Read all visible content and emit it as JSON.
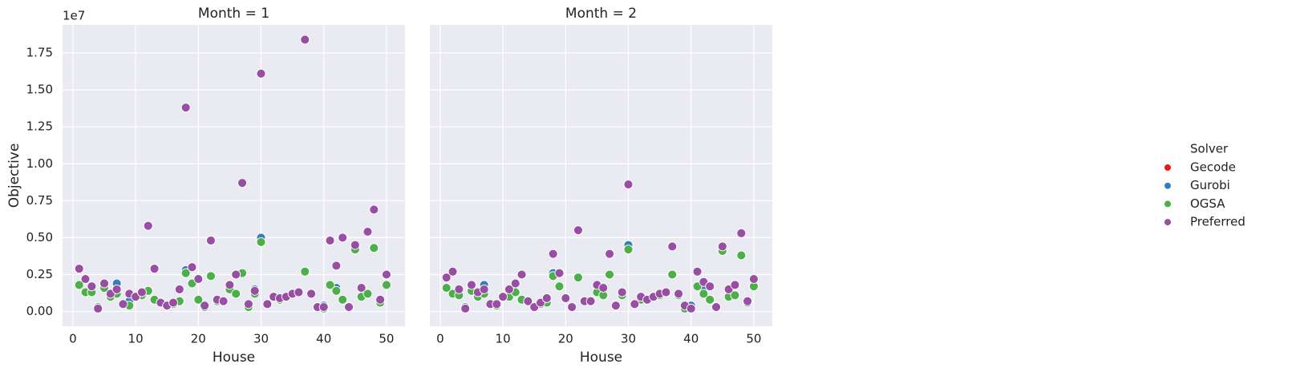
{
  "chart_data": [
    {
      "type": "scatter",
      "title": "Month = 1",
      "xlabel": "House",
      "ylabel": "Objective",
      "y_offset_label": "1e7",
      "xlim": [
        -1.65,
        52.95
      ],
      "ylim": [
        -0.1,
        1.94
      ],
      "xticks": [
        0,
        10,
        20,
        30,
        40,
        50
      ],
      "yticks": [
        {
          "value": 0,
          "label": "0.00"
        },
        {
          "value": 0.25,
          "label": "0.25"
        },
        {
          "value": 0.5,
          "label": "0.50"
        },
        {
          "value": 0.75,
          "label": "0.75"
        },
        {
          "value": 1,
          "label": "1.00"
        },
        {
          "value": 1.25,
          "label": "1.25"
        },
        {
          "value": 1.5,
          "label": "1.50"
        },
        {
          "value": 1.75,
          "label": "1.75"
        }
      ],
      "grid": true,
      "legend_title": "Solver",
      "legend_position": "right",
      "series": [
        {
          "name": "Gecode",
          "color": "#e41a1c",
          "x": [],
          "values": []
        },
        {
          "name": "Gurobi",
          "color": "#377eb8",
          "x": [
            7,
            9,
            18,
            29,
            30,
            40,
            42
          ],
          "values": [
            0.19,
            0.07,
            0.28,
            0.15,
            0.5,
            0.04,
            0.16
          ]
        },
        {
          "name": "OGSA",
          "color": "#4daf4a",
          "x": [
            1,
            2,
            3,
            4,
            5,
            6,
            7,
            8,
            9,
            10,
            11,
            12,
            13,
            14,
            15,
            16,
            17,
            18,
            19,
            20,
            21,
            22,
            23,
            24,
            25,
            26,
            27,
            28,
            29,
            30,
            31,
            32,
            33,
            34,
            35,
            36,
            37,
            38,
            39,
            40,
            41,
            42,
            43,
            44,
            45,
            46,
            47,
            48,
            49,
            50
          ],
          "values": [
            0.18,
            0.13,
            0.13,
            0.03,
            0.16,
            0.1,
            0.12,
            0.05,
            0.04,
            0.1,
            0.11,
            0.14,
            0.08,
            0.06,
            0.04,
            0.05,
            0.07,
            0.26,
            0.19,
            0.08,
            0.03,
            0.24,
            0.07,
            0.07,
            0.15,
            0.12,
            0.26,
            0.03,
            0.12,
            0.47,
            0.05,
            0.1,
            0.08,
            0.1,
            0.12,
            0.13,
            0.27,
            0.12,
            0.03,
            0.02,
            0.18,
            0.14,
            0.08,
            0.03,
            0.42,
            0.1,
            0.12,
            0.43,
            0.06,
            0.18
          ]
        },
        {
          "name": "Preferred",
          "color": "#984ea3",
          "x": [
            1,
            2,
            3,
            4,
            5,
            6,
            7,
            8,
            9,
            10,
            11,
            12,
            13,
            14,
            15,
            16,
            17,
            18,
            19,
            20,
            21,
            22,
            23,
            24,
            25,
            26,
            27,
            28,
            29,
            30,
            31,
            32,
            33,
            34,
            35,
            36,
            37,
            38,
            39,
            40,
            41,
            42,
            43,
            44,
            45,
            46,
            47,
            48,
            49,
            50
          ],
          "values": [
            0.29,
            0.22,
            0.17,
            0.02,
            0.19,
            0.12,
            0.15,
            0.05,
            0.12,
            0.1,
            0.13,
            0.58,
            0.29,
            0.06,
            0.04,
            0.06,
            0.15,
            1.38,
            0.3,
            0.22,
            0.04,
            0.48,
            0.08,
            0.07,
            0.18,
            0.25,
            0.87,
            0.05,
            0.14,
            1.61,
            0.05,
            0.1,
            0.09,
            0.1,
            0.12,
            0.13,
            1.84,
            0.12,
            0.03,
            0.03,
            0.48,
            0.31,
            0.5,
            0.03,
            0.45,
            0.16,
            0.54,
            0.69,
            0.08,
            0.25
          ]
        }
      ]
    },
    {
      "type": "scatter",
      "title": "Month = 2",
      "xlabel": "House",
      "xlim": [
        -1.65,
        52.95
      ],
      "ylim": [
        -0.1,
        1.94
      ],
      "xticks": [
        0,
        10,
        20,
        30,
        40,
        50
      ],
      "yticks": [
        0,
        0.25,
        0.5,
        0.75,
        1,
        1.25,
        1.5,
        1.75
      ],
      "grid": true,
      "series": [
        {
          "name": "Gecode",
          "color": "#e41a1c",
          "x": [],
          "values": []
        },
        {
          "name": "Gurobi",
          "color": "#377eb8",
          "x": [
            7,
            18,
            30,
            40,
            42
          ],
          "values": [
            0.18,
            0.26,
            0.45,
            0.04,
            0.15
          ]
        },
        {
          "name": "OGSA",
          "color": "#4daf4a",
          "x": [
            1,
            2,
            3,
            4,
            5,
            6,
            7,
            8,
            9,
            10,
            11,
            12,
            13,
            14,
            15,
            16,
            17,
            18,
            19,
            20,
            21,
            22,
            23,
            24,
            25,
            26,
            27,
            28,
            29,
            30,
            31,
            32,
            33,
            34,
            35,
            36,
            37,
            38,
            39,
            40,
            41,
            42,
            43,
            44,
            45,
            46,
            47,
            48,
            49,
            50
          ],
          "values": [
            0.16,
            0.12,
            0.11,
            0.03,
            0.14,
            0.1,
            0.12,
            0.05,
            0.04,
            0.1,
            0.1,
            0.13,
            0.08,
            0.07,
            0.03,
            0.05,
            0.06,
            0.24,
            0.17,
            0.09,
            0.03,
            0.23,
            0.07,
            0.07,
            0.13,
            0.11,
            0.25,
            0.04,
            0.11,
            0.42,
            0.05,
            0.08,
            0.08,
            0.1,
            0.11,
            0.13,
            0.25,
            0.11,
            0.02,
            0.02,
            0.17,
            0.12,
            0.08,
            0.03,
            0.41,
            0.1,
            0.11,
            0.38,
            0.06,
            0.17
          ]
        },
        {
          "name": "Preferred",
          "color": "#984ea3",
          "x": [
            1,
            2,
            3,
            4,
            5,
            6,
            7,
            8,
            9,
            10,
            11,
            12,
            13,
            14,
            15,
            16,
            17,
            18,
            19,
            20,
            21,
            22,
            23,
            24,
            25,
            26,
            27,
            28,
            29,
            30,
            31,
            32,
            33,
            34,
            35,
            36,
            37,
            38,
            39,
            40,
            41,
            42,
            43,
            44,
            45,
            46,
            47,
            48,
            49,
            50
          ],
          "values": [
            0.23,
            0.27,
            0.15,
            0.02,
            0.18,
            0.13,
            0.15,
            0.05,
            0.05,
            0.1,
            0.15,
            0.19,
            0.25,
            0.07,
            0.03,
            0.06,
            0.09,
            0.39,
            0.26,
            0.09,
            0.03,
            0.55,
            0.07,
            0.07,
            0.18,
            0.16,
            0.39,
            0.04,
            0.13,
            0.86,
            0.05,
            0.1,
            0.08,
            0.1,
            0.12,
            0.13,
            0.44,
            0.12,
            0.04,
            0.02,
            0.27,
            0.2,
            0.17,
            0.03,
            0.44,
            0.15,
            0.18,
            0.53,
            0.07,
            0.22
          ]
        }
      ]
    }
  ]
}
